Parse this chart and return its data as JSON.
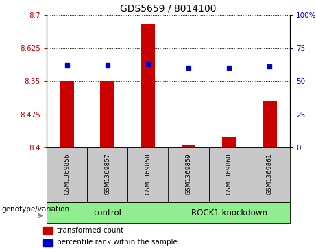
{
  "title": "GDS5659 / 8014100",
  "samples": [
    "GSM1369856",
    "GSM1369857",
    "GSM1369858",
    "GSM1369859",
    "GSM1369860",
    "GSM1369861"
  ],
  "red_values": [
    8.55,
    8.55,
    8.68,
    8.405,
    8.425,
    8.505
  ],
  "blue_values": [
    62,
    62,
    63,
    60,
    60,
    61
  ],
  "ymin": 8.4,
  "ymax": 8.7,
  "yticks": [
    8.4,
    8.475,
    8.55,
    8.625,
    8.7
  ],
  "ytick_labels": [
    "8.4",
    "8.475",
    "8.55",
    "8.625",
    "8.7"
  ],
  "y2min": 0,
  "y2max": 100,
  "y2ticks": [
    0,
    25,
    50,
    75,
    100
  ],
  "y2tick_labels": [
    "0",
    "25",
    "50",
    "75",
    "100%"
  ],
  "bar_color": "#CC0000",
  "dot_color": "#0000CC",
  "label_color_left": "#CC0000",
  "label_color_right": "#0000CC",
  "bar_width": 0.35,
  "legend_red": "transformed count",
  "legend_blue": "percentile rank within the sample",
  "genotype_label": "genotype/variation",
  "control_label": "control",
  "knockdown_label": "ROCK1 knockdown",
  "sample_box_color": "#C8C8C8",
  "group_box_color": "#90EE90",
  "title_fontsize": 10,
  "tick_fontsize": 7.5,
  "sample_fontsize": 6.5,
  "group_fontsize": 8.5,
  "legend_fontsize": 7.5,
  "geno_fontsize": 7.5
}
